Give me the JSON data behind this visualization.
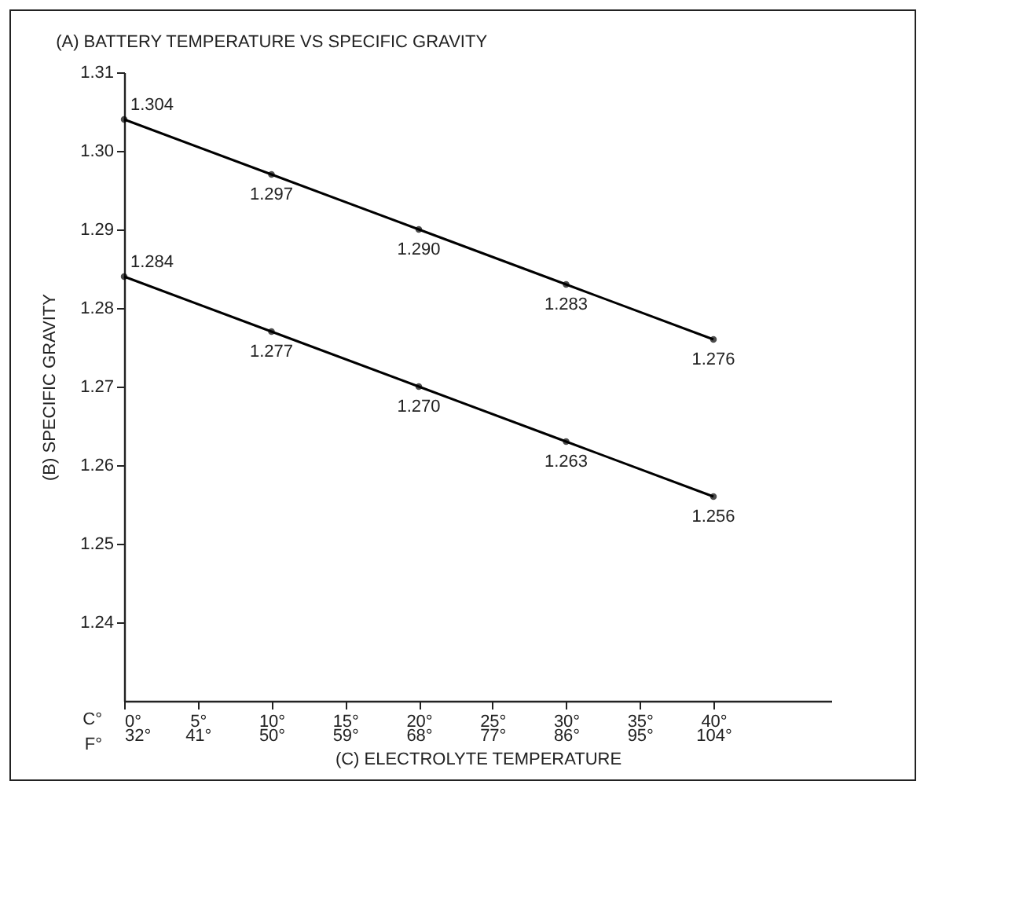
{
  "chart_data": {
    "type": "line",
    "title": "(A) BATTERY TEMPERATURE VS SPECIFIC GRAVITY",
    "xlabel": "(C) ELECTROLYTE TEMPERATURE",
    "ylabel": "(B) SPECIFIC GRAVITY",
    "annotations": [
      "C°",
      "F°"
    ],
    "x": [
      0,
      10,
      20,
      30,
      40
    ],
    "series": [
      {
        "color": "#000000",
        "values": [
          1.304,
          1.297,
          1.29,
          1.283,
          1.276
        ],
        "value_labels": [
          "1.304",
          "1.297",
          "1.290",
          "1.283",
          "1.276"
        ]
      },
      {
        "color": "#000000",
        "values": [
          1.284,
          1.277,
          1.27,
          1.263,
          1.256
        ],
        "value_labels": [
          "1.284",
          "1.277",
          "1.270",
          "1.263",
          "1.256"
        ]
      }
    ],
    "marker": "circle",
    "line_style": "solid",
    "grid": false,
    "legend": false,
    "xlim": [
      0,
      48
    ],
    "ylim": [
      1.23,
      1.31
    ],
    "xticks": [
      {
        "value": 0,
        "label": "0°"
      },
      {
        "value": 5,
        "label": "5°"
      },
      {
        "value": 10,
        "label": "10°"
      },
      {
        "value": 15,
        "label": "15°"
      },
      {
        "value": 20,
        "label": "20°"
      },
      {
        "value": 25,
        "label": "25°"
      },
      {
        "value": 30,
        "label": "30°"
      },
      {
        "value": 35,
        "label": "35°"
      },
      {
        "value": 40,
        "label": "40°"
      }
    ],
    "x2lim": [
      32,
      118.4
    ],
    "x2ticks": [
      {
        "value": 32,
        "label": "32°"
      },
      {
        "value": 41,
        "label": "41°"
      },
      {
        "value": 50,
        "label": "50°"
      },
      {
        "value": 59,
        "label": "59°"
      },
      {
        "value": 68,
        "label": "68°"
      },
      {
        "value": 77,
        "label": "77°"
      },
      {
        "value": 86,
        "label": "86°"
      },
      {
        "value": 95,
        "label": "95°"
      },
      {
        "value": 104,
        "label": "104°"
      }
    ],
    "yticks": [
      1.24,
      1.25,
      1.26,
      1.27,
      1.28,
      1.29,
      {
        "value": 1.3,
        "label": "1.30"
      },
      1.31
    ]
  }
}
